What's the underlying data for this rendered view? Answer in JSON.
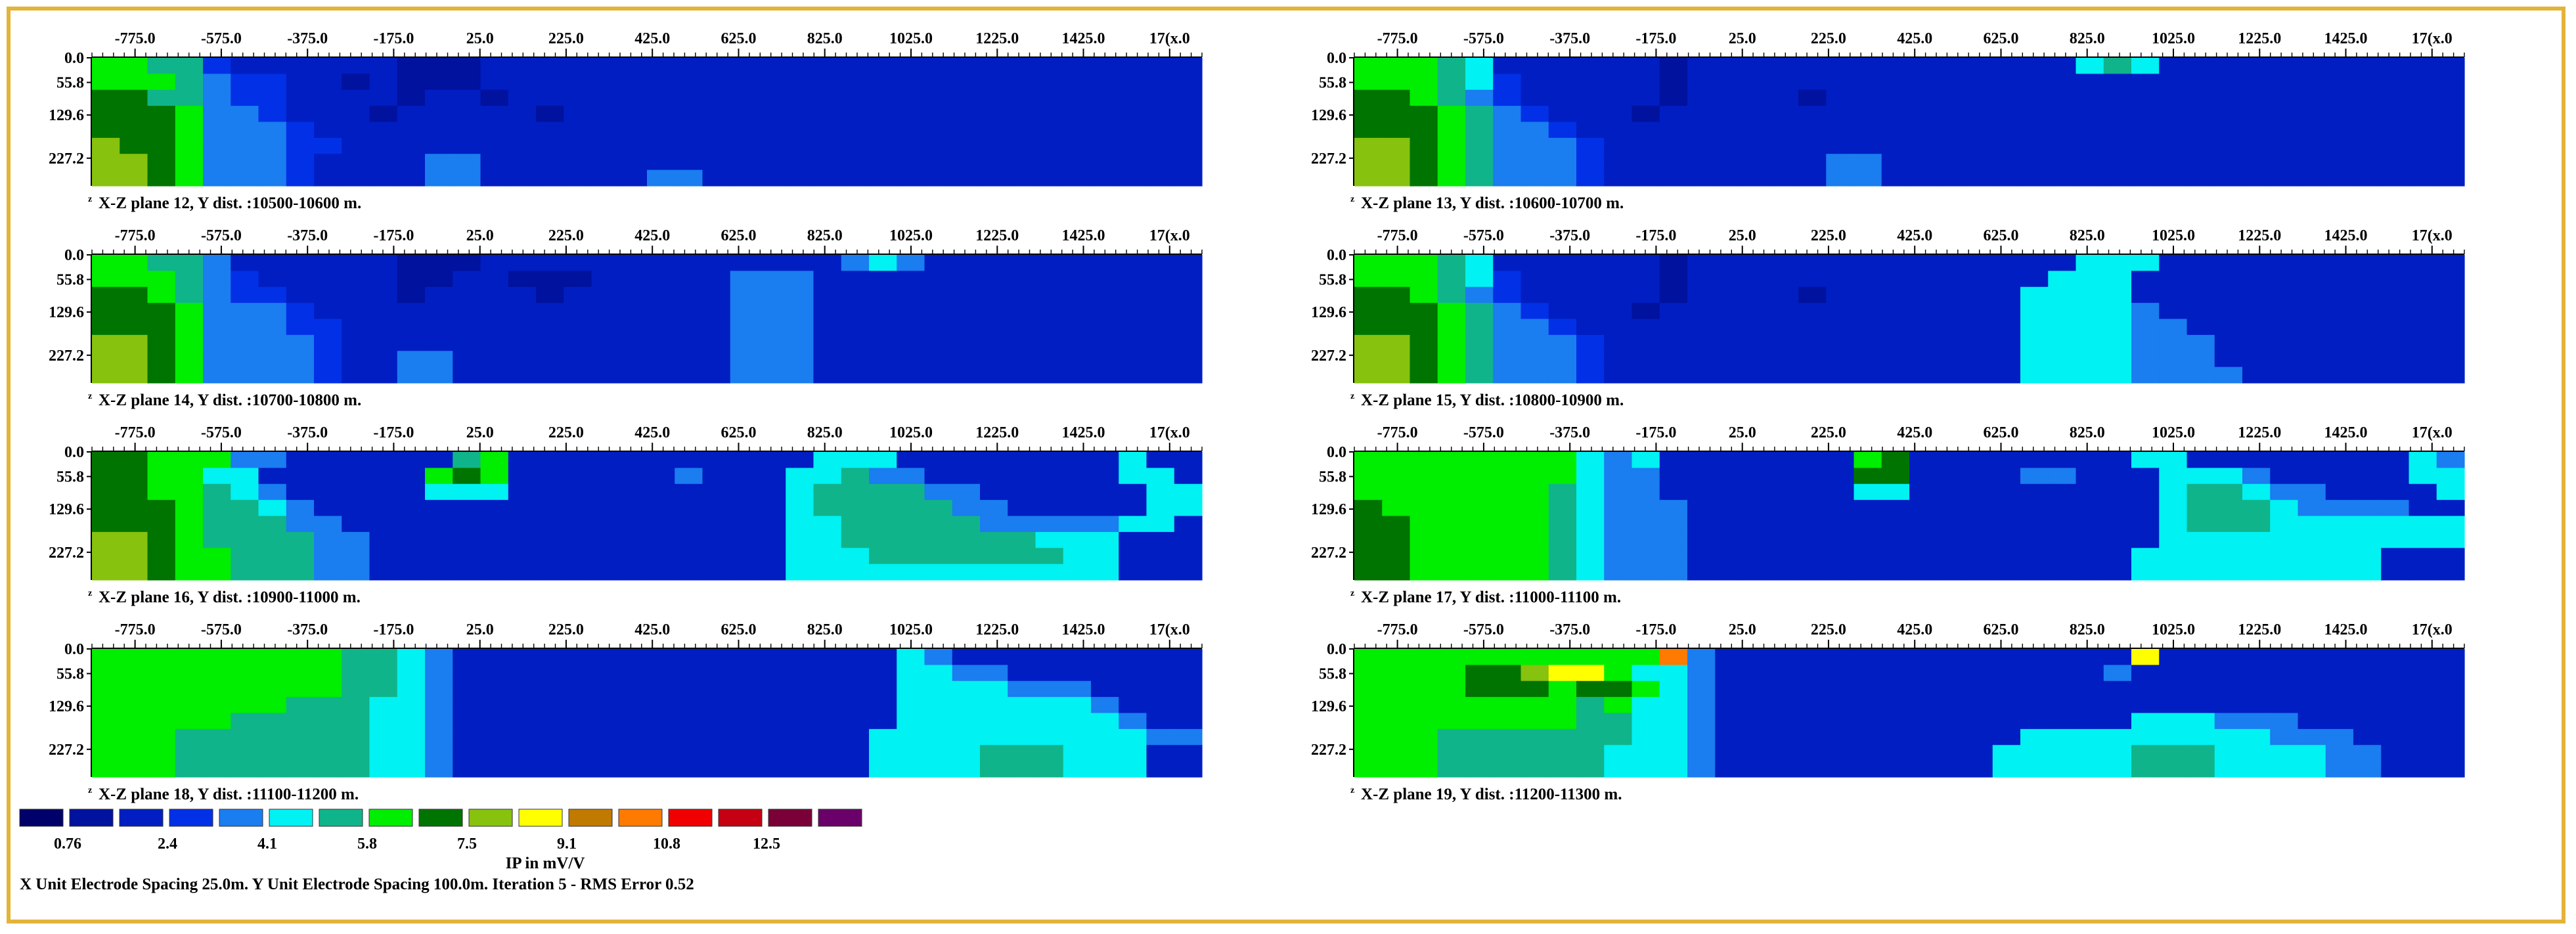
{
  "colors": {
    "frame": "#e3b43a",
    "scale": [
      "#00006a",
      "#00129e",
      "#001ec2",
      "#0230e6",
      "#1a7df0",
      "#00f2f2",
      "#10b48a",
      "#00ee00",
      "#007400",
      "#86c20e",
      "#ffff00",
      "#c07a00",
      "#ff7a00",
      "#f00000",
      "#c40012",
      "#7a0038",
      "#6a006a"
    ]
  },
  "chart_data": {
    "type": "heatmap",
    "x_ticks": [
      "-775.0",
      "-575.0",
      "-375.0",
      "-175.0",
      "25.0",
      "225.0",
      "425.0",
      "625.0",
      "825.0",
      "1025.0",
      "1225.0",
      "1425.0",
      "17(x.0"
    ],
    "y_ticks": [
      "0.0",
      "55.8",
      "129.6",
      "227.2"
    ],
    "x_range": [
      -875,
      1700
    ],
    "z_range": [
      0,
      290
    ],
    "columns": 40,
    "rows": 8,
    "grid": false,
    "panels": [
      {
        "name": "plane-12",
        "label": "X-Z plane 12, Y dist. :10500-10600 m.",
        "grid": [
          "77663222222111222222222222222222222222222",
          "77764332212111222222222222222222222222222",
          "88664332222122122222222222222222222222222",
          "88874432221222221222222222222222222222222",
          "88874443222222222222222222222222222222222",
          "9887444332222222222222222222222222222222",
          "99874443222244222222222222222222222222222",
          "99874443222244222222442222222222222222222"
        ]
      },
      {
        "name": "plane-13",
        "label": "X-Z plane 13, Y dist. :10600-10700 m.",
        "grid": [
          "77765222222122222222222222565222222222222",
          "77765322222122222222222222222222222222222",
          "88764322222122221222222222222222222222222",
          "88876432221222222222222222222222222222222",
          "88876443222222222222222222222222222222222",
          "99876444322222222222222222222222222222222",
          "9987644432222222244222222222222222222222",
          "9987644432222222244222222222222222222222"
        ]
      },
      {
        "name": "plane-14",
        "label": "X-Z plane 14, Y dist. :10700-10800 m.",
        "grid": [
          "77664222222111222222222222245422222222222",
          "77764322222112211122222444222222222222222",
          "88764332222122221222222444222222222222222",
          "88874443222222222222222444222222222222222",
          "88874443322222222222222444222222222222222",
          "99874444322222222222222444222222222222222",
          "99874444322442222222222444222222222222222",
          "99874444322442222222222444222222222222222"
        ]
      },
      {
        "name": "plane-15",
        "label": "X-Z plane 15, Y dist. :10800-10900 m.",
        "grid": [
          "77765222222122222222222222555222222222222",
          "77765322222122222222222225552222222222222",
          "88764322222122221222222255552222222222222",
          "88876432221222222222222255554222222222222",
          "88876443222222222222222255554422222222222",
          "99876444322222222222222255554442222222222",
          "9987644432222222222222225555444222222222",
          "9987644432222222222222225555444422222222"
        ]
      },
      {
        "name": "plane-16",
        "label": "X-Z plane 16, Y dist. :10900-11000 m.",
        "grid": [
          "88777442222226722222222222555222222225222",
          "88775522222278722222242225564422222225522",
          "88776542222255522222222225666644222222552",
          "88876654222222222222222225666664422222552",
          "88876664422222222222222225566666444445522",
          "99876666442222222222222225566666665552222",
          "99877666442222222222222225556666666552222",
          "99877666442222222222222225555555555552222"
        ]
      },
      {
        "name": "plane-17",
        "label": "X-Z plane 17, Y dist. :11000-11100 m.",
        "grid": [
          "77777777545222222278222222225522222222542",
          "77777777544222222288222244222555422222554",
          "77777776544222222255222222222566544222255",
          "87777776544422222222222222222566654444225",
          "88777776544422222222222222222566655555552",
          "88777776544422222222222222222555555555552",
          "88777776544422222222222222225555555552222",
          "88777776544422222222222222225555555552222"
        ]
      },
      {
        "name": "plane-18",
        "label": "X-Z plane 18, Y dist. :11100-11200 m.",
        "grid": [
          "77777777766542222222222222222542222222222",
          "77777777766542222222222222222554422222222",
          "77777777766542222222222222222555544422222",
          "77777776665542222222222222222555555542222",
          "77777666665542222222222222222555555554222",
          "77766666665542222222222222225555555555442",
          "77766666665542222222222222225555666555222",
          "77766666665542222222222222225555666555222"
        ]
      },
      {
        "name": "plane-19",
        "label": "X-Z plane 19, Y dist. :11200-11300 m.",
        "grid": [
          "77777777777c4222222222222222a22222222222",
          "7777889aa7554222222222222224222222222222",
          "777788878875422222222222222222222222222",
          "77777777675542222222222222222222222222222",
          "77777777665542222222222222225554442222222",
          "77766666665542222222222255555555544422222",
          "7776666665554222222222255555666555544222",
          "7776666665554222222222255555666555544222"
        ]
      }
    ],
    "legend": {
      "tick_labels": [
        "0.76",
        "2.4",
        "4.1",
        "5.8",
        "7.5",
        "9.1",
        "10.8",
        "12.5"
      ],
      "title": "IP in mV/V"
    }
  },
  "footer": "X Unit Electrode Spacing 25.0m.  Y Unit Electrode Spacing 100.0m.   Iteration 5 - RMS Error 0.52",
  "axis_marker": "z"
}
